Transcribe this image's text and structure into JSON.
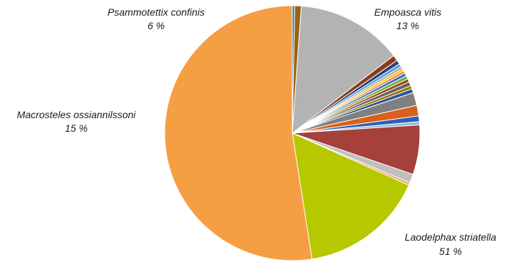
{
  "chart_data": {
    "type": "pie",
    "start_angle_deg": 0,
    "direction": "clockwise",
    "slices": [
      {
        "name": "",
        "value": 0.3,
        "color": "#2e75b6"
      },
      {
        "name": "",
        "value": 0.8,
        "color": "#996515"
      },
      {
        "name": "Empoasca vitis",
        "percent_label": "13 %",
        "value": 13.1,
        "color": "#b3b3b3"
      },
      {
        "name": "",
        "value": 0.7,
        "color": "#8a3a1a"
      },
      {
        "name": "",
        "value": 0.5,
        "color": "#264478"
      },
      {
        "name": "",
        "value": 0.4,
        "color": "#5b9bd5"
      },
      {
        "name": "",
        "value": 0.3,
        "color": "#a5a5a5"
      },
      {
        "name": "",
        "value": 0.3,
        "color": "#ffc000"
      },
      {
        "name": "",
        "value": 0.3,
        "color": "#ed7d31"
      },
      {
        "name": "",
        "value": 0.4,
        "color": "#4472c4"
      },
      {
        "name": "",
        "value": 0.4,
        "color": "#70ad47"
      },
      {
        "name": "",
        "value": 0.4,
        "color": "#9e480e"
      },
      {
        "name": "",
        "value": 0.5,
        "color": "#636363"
      },
      {
        "name": "",
        "value": 0.4,
        "color": "#997300"
      },
      {
        "name": "",
        "value": 0.5,
        "color": "#2f5597"
      },
      {
        "name": "",
        "value": 1.6,
        "color": "#808080"
      },
      {
        "name": "",
        "value": 1.3,
        "color": "#d8601c"
      },
      {
        "name": "",
        "value": 0.7,
        "color": "#2f5fb3"
      },
      {
        "name": "",
        "value": 0.4,
        "color": "#8fb8e0"
      },
      {
        "name": "Psammotettix confinis",
        "percent_label": "6 %",
        "value": 6.1,
        "color": "#a5403a"
      },
      {
        "name": "",
        "value": 1.1,
        "color": "#bfbfbf"
      },
      {
        "name": "",
        "value": 0.3,
        "color": "#f4a460"
      },
      {
        "name": "Macrosteles ossiannilssoni",
        "percent_label": "15 %",
        "value": 15.4,
        "color": "#b5c800"
      },
      {
        "name": "Laodelphax striatella",
        "percent_label": "51 %",
        "value": 51.0,
        "color": "#f59e44"
      }
    ]
  }
}
